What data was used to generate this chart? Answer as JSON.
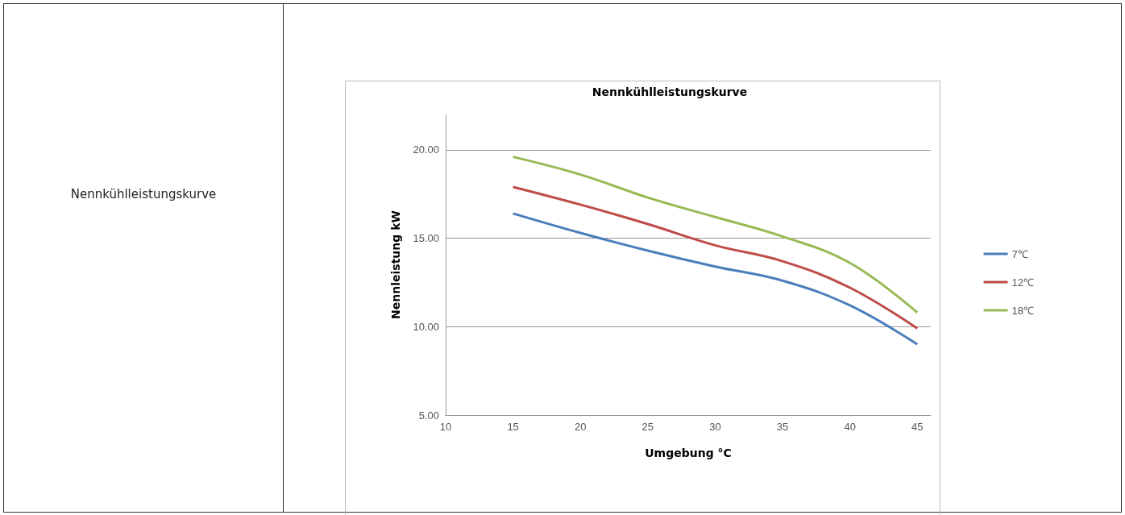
{
  "chart_data": {
    "type": "line",
    "title": "Nennkühlleistungskurve",
    "xlabel": "Umgebung °C",
    "ylabel": "Nennleistung kW",
    "annotations": [
      "Nennkühlleistungskurve"
    ],
    "x": [
      15,
      20,
      25,
      30,
      35,
      40,
      45
    ],
    "series": [
      {
        "name": "7℃",
        "color": "#4a7ebb",
        "values": [
          16.4,
          15.3,
          14.3,
          13.4,
          12.6,
          11.2,
          9.0
        ]
      },
      {
        "name": "12℃",
        "color": "#be4b48",
        "values": [
          17.9,
          16.9,
          15.8,
          14.6,
          13.7,
          12.2,
          9.9
        ]
      },
      {
        "name": "18℃",
        "color": "#98b954",
        "values": [
          19.6,
          18.6,
          17.3,
          16.2,
          15.1,
          13.6,
          10.8
        ]
      }
    ],
    "xlim": [
      10,
      46
    ],
    "xticks": [
      10,
      15,
      20,
      25,
      30,
      35,
      40,
      45
    ],
    "ylim": [
      5,
      22
    ],
    "yticks": [
      {
        "value": 5,
        "label": "5.00"
      },
      {
        "value": 10,
        "label": "10.00"
      },
      {
        "value": 15,
        "label": "15.00"
      },
      {
        "value": 20,
        "label": "20.00"
      }
    ],
    "grid": "y",
    "legend": "right",
    "marker": "none",
    "line_style": "solid"
  }
}
